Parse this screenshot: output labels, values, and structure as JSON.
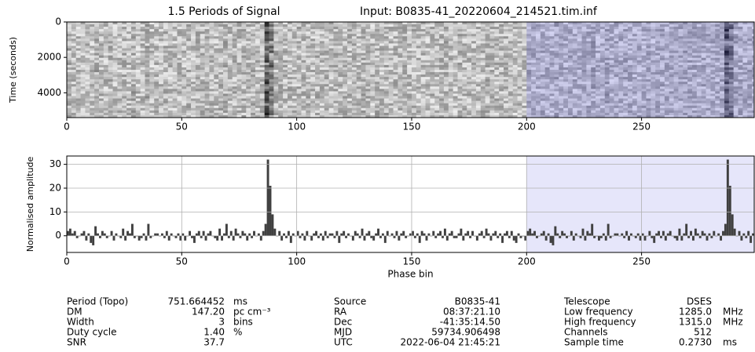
{
  "chart_data": [
    {
      "type": "heatmap",
      "title": "1.5 Periods of Signal",
      "subtitle": "Input:  B0835-41_20220604_214521.tim.inf",
      "ylabel": "Time (seconds)",
      "xlim": [
        0,
        299
      ],
      "ylim": [
        5400,
        0
      ],
      "xticks": [
        0,
        50,
        100,
        150,
        200,
        250
      ],
      "yticks": [
        0,
        2000,
        4000
      ],
      "highlight_xlim": [
        200,
        299
      ],
      "highlight_color": "#5a5aff"
    },
    {
      "type": "bar",
      "xlabel": "Phase bin",
      "ylabel": "Normalised amplitude",
      "color": "#404040",
      "xlim": [
        0,
        299
      ],
      "ylim": [
        -7,
        33.5
      ],
      "xticks": [
        0,
        50,
        100,
        150,
        200,
        250
      ],
      "yticks": [
        0,
        10,
        20,
        30
      ],
      "grid": true,
      "highlight_xlim": [
        200,
        299
      ],
      "highlight_color": "#e6e6fa",
      "values": [
        2,
        3,
        1,
        2,
        -1,
        0,
        1,
        2,
        -2,
        1,
        -3,
        -4,
        4,
        1,
        -1,
        2,
        1,
        -1,
        0,
        2,
        -2,
        1,
        0,
        -1,
        3,
        -2,
        2,
        1,
        5,
        -1,
        0,
        -2,
        -1,
        1,
        -2,
        5,
        -1,
        0,
        1,
        1,
        0,
        1,
        -1,
        2,
        -2,
        1,
        0,
        -1,
        1,
        -2,
        1,
        -2,
        0,
        2,
        -1,
        -3,
        1,
        2,
        -1,
        2,
        -2,
        1,
        2,
        0,
        -1,
        -2,
        3,
        -2,
        1,
        5,
        -1,
        2,
        -2,
        3,
        1,
        -1,
        2,
        1,
        -2,
        1,
        -1,
        2,
        0,
        1,
        -2,
        2,
        5,
        32,
        21,
        9,
        3,
        0,
        2,
        -2,
        1,
        -1,
        2,
        -3,
        1,
        0,
        2,
        -1,
        1,
        -2,
        2,
        0,
        -2,
        1,
        2,
        -1,
        1,
        -2,
        2,
        -1,
        1,
        1,
        -1,
        2,
        -3,
        1,
        2,
        -1,
        1,
        0,
        -2,
        2,
        1,
        -1,
        3,
        -2,
        1,
        2,
        -1,
        -2,
        1,
        3,
        -1,
        1,
        -3,
        2,
        0,
        1,
        -1,
        2,
        -2,
        1,
        2,
        -1,
        0,
        1,
        2,
        -1,
        1,
        -3,
        2,
        1,
        -2,
        1,
        0,
        2,
        -1,
        1,
        2,
        -1,
        3,
        -2,
        1,
        2,
        -1,
        -1,
        1,
        3,
        -2,
        1,
        2,
        -1,
        2,
        0,
        -2,
        1,
        2,
        -1,
        3,
        1,
        -2,
        1,
        2,
        -1,
        1,
        -3,
        1,
        2,
        -1,
        2,
        -2,
        -3,
        1,
        -1,
        0,
        -2
      ]
    }
  ],
  "parameters": [
    [
      {
        "label": "Period (Topo)",
        "value": "751.664452",
        "unit": "ms"
      },
      {
        "label": "DM",
        "value": "147.20",
        "unit": "pc cm⁻³"
      },
      {
        "label": "Width",
        "value": "3",
        "unit": "bins"
      },
      {
        "label": "Duty cycle",
        "value": "1.40",
        "unit": "%"
      },
      {
        "label": "SNR",
        "value": "37.7"
      }
    ],
    [
      {
        "label": "Source",
        "value": "B0835-41"
      },
      {
        "label": "RA",
        "value": "08:37:21.10"
      },
      {
        "label": "Dec",
        "value": "-41:35:14.50"
      },
      {
        "label": "MJD",
        "value": "59734.906498"
      },
      {
        "label": "UTC",
        "value": "2022-06-04 21:45:21"
      }
    ],
    [
      {
        "label": "Telescope",
        "value": "DSES"
      },
      {
        "label": "Low frequency",
        "value": "1285.0",
        "unit": "MHz"
      },
      {
        "label": "High frequency",
        "value": "1315.0",
        "unit": "MHz"
      },
      {
        "label": "Channels",
        "value": "512"
      },
      {
        "label": "Sample time",
        "value": "0.2730",
        "unit": "ms"
      }
    ]
  ]
}
